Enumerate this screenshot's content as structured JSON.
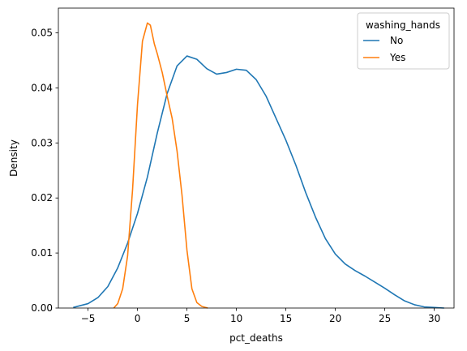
{
  "chart_data": {
    "type": "line",
    "title": "",
    "xlabel": "pct_deaths",
    "ylabel": "Density",
    "xlim": [
      -8,
      32
    ],
    "ylim": [
      0,
      0.0545
    ],
    "xticks": [
      -5,
      0,
      5,
      10,
      15,
      20,
      25,
      30
    ],
    "xtick_labels": [
      "−5",
      "0",
      "5",
      "10",
      "15",
      "20",
      "25",
      "30"
    ],
    "yticks": [
      0,
      0.01,
      0.02,
      0.03,
      0.04,
      0.05
    ],
    "ytick_labels": [
      "0.00",
      "0.01",
      "0.02",
      "0.03",
      "0.04",
      "0.05"
    ],
    "grid": false,
    "legend": {
      "title": "washing_hands",
      "placement": "top-right"
    },
    "series": [
      {
        "name": "No",
        "color": "#1f77b4",
        "x": [
          -6.5,
          -5,
          -4,
          -3,
          -2,
          -1,
          0,
          1,
          2,
          3,
          4,
          5,
          6,
          7,
          8,
          9,
          10,
          11,
          12,
          13,
          14,
          15,
          16,
          17,
          18,
          19,
          20,
          21,
          22,
          23,
          24,
          25,
          26,
          27,
          28,
          29,
          30,
          31
        ],
        "y": [
          0.0001,
          0.0008,
          0.0019,
          0.0039,
          0.0073,
          0.0118,
          0.0172,
          0.0238,
          0.0318,
          0.039,
          0.044,
          0.0458,
          0.0452,
          0.0435,
          0.0425,
          0.0428,
          0.0434,
          0.0432,
          0.0415,
          0.0385,
          0.0345,
          0.0305,
          0.026,
          0.021,
          0.0165,
          0.0126,
          0.0098,
          0.008,
          0.0068,
          0.0058,
          0.0047,
          0.0036,
          0.0024,
          0.0013,
          0.0006,
          0.0002,
          0.0001,
          0.0
        ]
      },
      {
        "name": "Yes",
        "color": "#ff7f0e",
        "x": [
          -2.4,
          -2.0,
          -1.5,
          -1.0,
          -0.5,
          0.0,
          0.5,
          1.0,
          1.3,
          1.7,
          2.0,
          2.5,
          3.0,
          3.5,
          4.0,
          4.5,
          5.0,
          5.5,
          6.0,
          6.5,
          7.1
        ],
        "y": [
          0.0,
          0.0008,
          0.0035,
          0.0095,
          0.0215,
          0.037,
          0.0485,
          0.0518,
          0.0514,
          0.048,
          0.0462,
          0.0428,
          0.0385,
          0.0345,
          0.0285,
          0.0205,
          0.0105,
          0.0035,
          0.001,
          0.0003,
          0.0
        ]
      }
    ]
  }
}
